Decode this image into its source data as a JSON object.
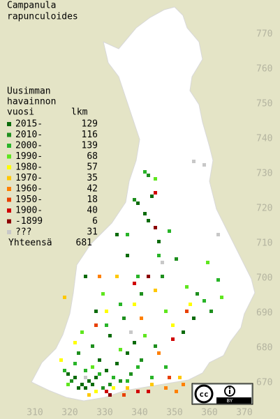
{
  "map": {
    "title_lines": [
      "Campanula",
      "rapunculoides"
    ],
    "legend_header_lines": [
      "Uusimman",
      "havainnon",
      "vuosi"
    ],
    "count_header": "lkm",
    "classes": [
      {
        "label": "2015-",
        "count": 129,
        "color": "#0b6b0b",
        "cells": [
          [
            322,
            668
          ],
          [
            323,
            669
          ],
          [
            324,
            668
          ],
          [
            325,
            670
          ],
          [
            326,
            669
          ],
          [
            327,
            671
          ],
          [
            321,
            671
          ],
          [
            330,
            673
          ],
          [
            333,
            675
          ],
          [
            336,
            678
          ],
          [
            338,
            681
          ],
          [
            331,
            683
          ],
          [
            327,
            690
          ],
          [
            324,
            700
          ],
          [
            336,
            706
          ],
          [
            333,
            712
          ],
          [
            341,
            718
          ],
          [
            343,
            723
          ],
          [
            339,
            721
          ],
          [
            342,
            716
          ],
          [
            328,
            676
          ],
          [
            319,
            672
          ],
          [
            345,
            710
          ],
          [
            355,
            688
          ],
          [
            352,
            684
          ]
        ]
      },
      {
        "label": "2010-",
        "count": 116,
        "color": "#1e8f1e",
        "cells": [
          [
            320,
            670
          ],
          [
            329,
            668
          ],
          [
            331,
            669
          ],
          [
            334,
            670
          ],
          [
            337,
            672
          ],
          [
            340,
            676
          ],
          [
            344,
            680
          ],
          [
            326,
            680
          ],
          [
            322,
            678
          ],
          [
            335,
            688
          ],
          [
            340,
            695
          ],
          [
            346,
            700
          ],
          [
            338,
            722
          ],
          [
            342,
            729
          ],
          [
            350,
            705
          ],
          [
            360,
            690
          ],
          [
            356,
            695
          ]
        ]
      },
      {
        "label": "2000-",
        "count": 139,
        "color": "#28b428",
        "cells": [
          [
            318,
            673
          ],
          [
            321,
            675
          ],
          [
            324,
            673
          ],
          [
            328,
            672
          ],
          [
            332,
            671
          ],
          [
            336,
            670
          ],
          [
            339,
            674
          ],
          [
            343,
            671
          ],
          [
            347,
            674
          ],
          [
            330,
            686
          ],
          [
            334,
            692
          ],
          [
            339,
            700
          ],
          [
            345,
            706
          ],
          [
            348,
            713
          ],
          [
            358,
            693
          ],
          [
            362,
            699
          ],
          [
            336,
            712
          ],
          [
            341,
            730
          ]
        ]
      },
      {
        "label": "1990-",
        "count": 68,
        "color": "#5fe61e",
        "cells": [
          [
            319,
            669
          ],
          [
            326,
            674
          ],
          [
            334,
            679
          ],
          [
            341,
            683
          ],
          [
            347,
            690
          ],
          [
            353,
            697
          ],
          [
            329,
            695
          ],
          [
            323,
            684
          ],
          [
            344,
            728
          ],
          [
            359,
            704
          ],
          [
            363,
            694
          ]
        ]
      },
      {
        "label": "1980-",
        "count": 57,
        "color": "#ffff00",
        "cells": [
          [
            327,
            667
          ],
          [
            332,
            668
          ],
          [
            321,
            681
          ],
          [
            317,
            676
          ],
          [
            330,
            690
          ],
          [
            349,
            686
          ],
          [
            354,
            692
          ],
          [
            338,
            692
          ]
        ]
      },
      {
        "label": "1970-",
        "count": 35,
        "color": "#ffc800",
        "cells": [
          [
            325,
            666
          ],
          [
            336,
            668
          ],
          [
            343,
            669
          ],
          [
            318,
            694
          ],
          [
            344,
            696
          ],
          [
            351,
            671
          ],
          [
            333,
            700
          ]
        ]
      },
      {
        "label": "1960-",
        "count": 42,
        "color": "#ff8000",
        "cells": [
          [
            350,
            667
          ],
          [
            352,
            669
          ],
          [
            347,
            668
          ],
          [
            345,
            678
          ],
          [
            328,
            700
          ],
          [
            340,
            688
          ]
        ]
      },
      {
        "label": "1950-",
        "count": 18,
        "color": "#e84000",
        "cells": [
          [
            335,
            666
          ],
          [
            348,
            671
          ],
          [
            327,
            686
          ],
          [
            353,
            690
          ]
        ]
      },
      {
        "label": "1900-",
        "count": 40,
        "color": "#d00000",
        "cells": [
          [
            330,
            667
          ],
          [
            342,
            667
          ],
          [
            349,
            682
          ],
          [
            338,
            698
          ],
          [
            344,
            724
          ],
          [
            339,
            667
          ]
        ]
      },
      {
        "label": "-1899",
        "count": 6,
        "color": "#8b0000",
        "cells": [
          [
            331,
            666
          ],
          [
            342,
            700
          ],
          [
            344,
            714
          ]
        ]
      },
      {
        "label": "???",
        "count": 31,
        "color": "#c8c8c8",
        "cells": [
          [
            324,
            671
          ],
          [
            337,
            684
          ],
          [
            355,
            733
          ],
          [
            358,
            732
          ],
          [
            346,
            704
          ],
          [
            362,
            712
          ]
        ]
      }
    ],
    "total_label": "Yhteensä",
    "total": 681,
    "xticks": [
      310,
      320,
      330,
      340,
      350,
      360,
      370
    ],
    "yticks": [
      670,
      680,
      690,
      700,
      710,
      720,
      730,
      740,
      750,
      760,
      770
    ],
    "license": {
      "badge": "cc",
      "label": "BY"
    }
  }
}
